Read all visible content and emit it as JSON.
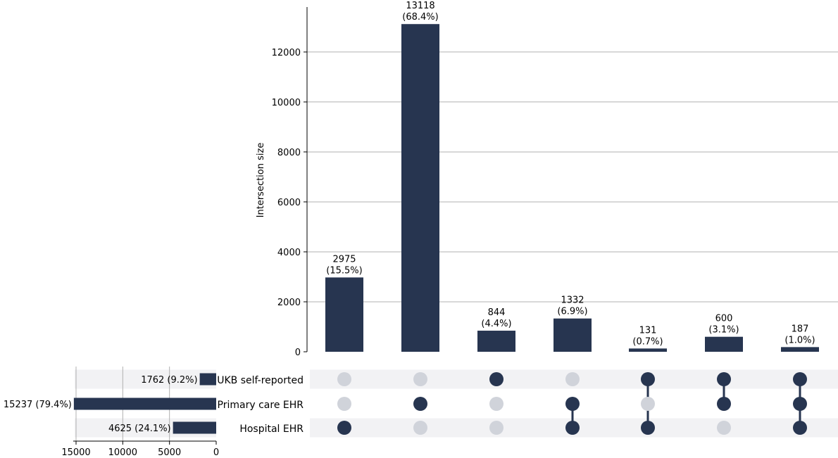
{
  "colors": {
    "bar": "#273550",
    "dot_active": "#273550",
    "dot_inactive": "#d0d3da",
    "row_shade": "#f2f2f4",
    "grid": "#b0b0b0",
    "axis": "#000000"
  },
  "chart_data": {
    "type": "upset",
    "sets": [
      "UKB self-reported",
      "Primary care EHR",
      "Hospital EHR"
    ],
    "set_sizes": [
      {
        "name": "UKB self-reported",
        "value": 1762,
        "label": "1762 (9.2%)"
      },
      {
        "name": "Primary care EHR",
        "value": 15237,
        "label": "15237 (79.4%)"
      },
      {
        "name": "Hospital EHR",
        "value": 4625,
        "label": "4625 (24.1%)"
      }
    ],
    "set_size_axis": {
      "xlim": [
        15000,
        0
      ],
      "ticks": [
        "15000",
        "10000",
        "5000",
        "0"
      ],
      "tick_values": [
        15000,
        10000,
        5000,
        0
      ],
      "grid": true
    },
    "intersections": [
      {
        "members": [
          false,
          false,
          true
        ],
        "value": 2975,
        "count_label": "2975",
        "pct_label": "(15.5%)"
      },
      {
        "members": [
          false,
          true,
          false
        ],
        "value": 13118,
        "count_label": "13118",
        "pct_label": "(68.4%)"
      },
      {
        "members": [
          true,
          false,
          false
        ],
        "value": 844,
        "count_label": "844",
        "pct_label": "(4.4%)"
      },
      {
        "members": [
          false,
          true,
          true
        ],
        "value": 1332,
        "count_label": "1332",
        "pct_label": "(6.9%)"
      },
      {
        "members": [
          true,
          false,
          true
        ],
        "value": 131,
        "count_label": "131",
        "pct_label": "(0.7%)"
      },
      {
        "members": [
          true,
          true,
          false
        ],
        "value": 600,
        "count_label": "600",
        "pct_label": "(3.1%)"
      },
      {
        "members": [
          true,
          true,
          true
        ],
        "value": 187,
        "count_label": "187",
        "pct_label": "(1.0%)"
      }
    ],
    "intersection_axis": {
      "ylabel": "Intersection size",
      "ylim": [
        0,
        13800
      ],
      "ticks": [
        "0",
        "2000",
        "4000",
        "6000",
        "8000",
        "10000",
        "12000"
      ],
      "tick_values": [
        0,
        2000,
        4000,
        6000,
        8000,
        10000,
        12000
      ],
      "grid": true
    }
  }
}
